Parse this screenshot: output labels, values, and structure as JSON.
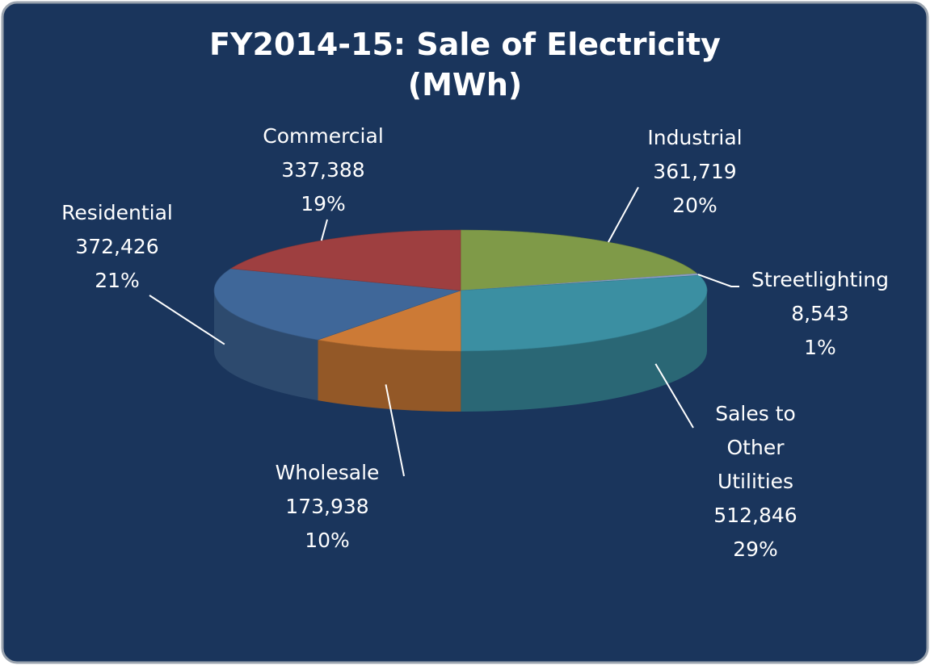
{
  "chart_data": {
    "type": "pie3d",
    "title": "FY2014-15: Sale of Electricity",
    "subtitle": "(MWh)",
    "categories": [
      "Industrial",
      "Streetlighting",
      "Sales to Other Utilities",
      "Wholesale",
      "Residential",
      "Commercial"
    ],
    "values": [
      361719,
      8543,
      512846,
      173938,
      372426,
      337388
    ],
    "value_labels": [
      "361,719",
      "8,543",
      "512,846",
      "173,938",
      "372,426",
      "337,388"
    ],
    "percent_labels": [
      "20%",
      "1%",
      "29%",
      "10%",
      "21%",
      "19%"
    ],
    "colors": [
      "#7f9a48",
      "#8d9fc6",
      "#3b8fa2",
      "#cc7a36",
      "#3f6799",
      "#9e3f40"
    ]
  }
}
